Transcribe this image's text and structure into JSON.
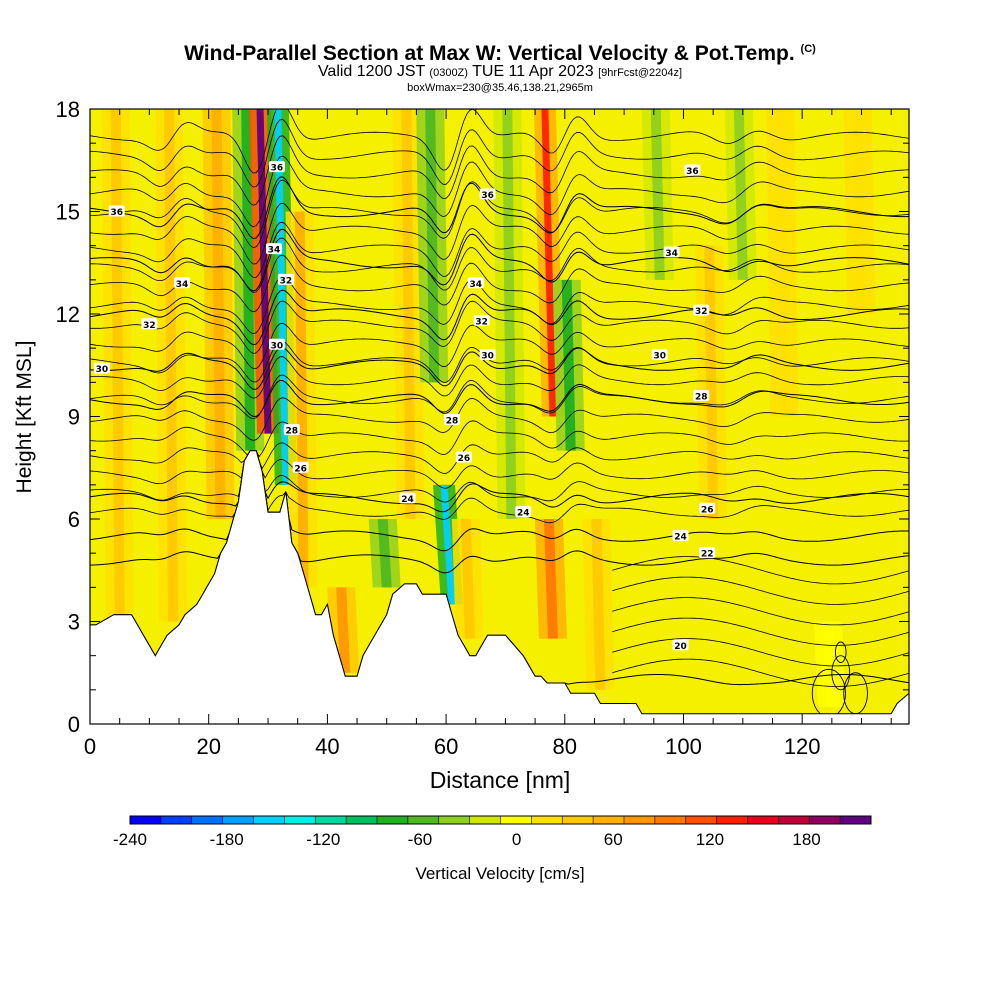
{
  "header": {
    "title_main": "Wind-Parallel Section at Max W: Vertical Velocity & Pot.Temp.",
    "title_tag": "(C)",
    "valid_prefix": "Valid 1200 JST",
    "valid_z": "(0300Z)",
    "valid_date": "TUE 11 Apr 2023",
    "valid_fcst": "[9hrFcst@2204z]",
    "box_info": "boxWmax=230@35.46,138.21,2965m"
  },
  "chart_data": {
    "type": "heatmap",
    "xlabel": "Distance [nm]",
    "ylabel": "Height [Kft MSL]",
    "xlim": [
      0,
      138
    ],
    "ylim": [
      0,
      18
    ],
    "x_ticks": [
      0,
      20,
      40,
      60,
      80,
      100,
      120
    ],
    "y_ticks": [
      0,
      3,
      6,
      9,
      12,
      15,
      18
    ],
    "colorbar": {
      "label": "Vertical Velocity [cm/s]",
      "tick_values": [
        -240,
        -180,
        -120,
        -60,
        0,
        60,
        120,
        180
      ],
      "range": [
        -240,
        220
      ],
      "colors": [
        "#0000ff",
        "#0040ff",
        "#0070ff",
        "#00a0ff",
        "#00d0ff",
        "#00f0e8",
        "#00d8a0",
        "#00c060",
        "#20b020",
        "#50b820",
        "#90d020",
        "#d0e800",
        "#ffff00",
        "#ffe000",
        "#ffc800",
        "#ffb000",
        "#ff9800",
        "#ff7800",
        "#ff5000",
        "#ff2000",
        "#e8001e",
        "#c00038",
        "#900060",
        "#600080"
      ]
    },
    "vertical_velocity_features": [
      {
        "x": 5,
        "top": 18,
        "bottom": 3,
        "w": 40
      },
      {
        "x": 14,
        "top": 18,
        "bottom": 3,
        "w": 30
      },
      {
        "x": 22,
        "top": 18,
        "bottom": 6,
        "w": 60
      },
      {
        "x": 27,
        "top": 18,
        "bottom": 8,
        "w": -70
      },
      {
        "x": 30,
        "top": 18,
        "bottom": 8.5,
        "w": 230
      },
      {
        "x": 33,
        "top": 18,
        "bottom": 7,
        "w": -150
      },
      {
        "x": 36,
        "top": 15,
        "bottom": 4,
        "w": 50
      },
      {
        "x": 43,
        "top": 4,
        "bottom": 1.5,
        "w": 70
      },
      {
        "x": 50,
        "top": 6,
        "bottom": 4,
        "w": -60
      },
      {
        "x": 54,
        "top": 18,
        "bottom": 6,
        "w": 40
      },
      {
        "x": 58,
        "top": 18,
        "bottom": 10,
        "w": -60
      },
      {
        "x": 61,
        "top": 7,
        "bottom": 3.5,
        "w": -150
      },
      {
        "x": 64,
        "top": 6,
        "bottom": 2.5,
        "w": 40
      },
      {
        "x": 71,
        "top": 18,
        "bottom": 6,
        "w": -40
      },
      {
        "x": 78,
        "top": 18,
        "bottom": 9,
        "w": 130
      },
      {
        "x": 78,
        "top": 6,
        "bottom": 2.5,
        "w": 100
      },
      {
        "x": 81,
        "top": 13,
        "bottom": 8,
        "w": -70
      },
      {
        "x": 86,
        "top": 6,
        "bottom": 1,
        "w": 40
      },
      {
        "x": 96,
        "top": 18,
        "bottom": 13,
        "w": -30
      },
      {
        "x": 105,
        "top": 14,
        "bottom": 6,
        "w": 30
      },
      {
        "x": 110,
        "top": 18,
        "bottom": 13,
        "w": -40
      },
      {
        "x": 117,
        "top": 18,
        "bottom": 9,
        "w": 20
      },
      {
        "x": 125,
        "top": 3,
        "bottom": 0.5,
        "w": -10
      },
      {
        "x": 130,
        "top": 18,
        "bottom": 12,
        "w": 20
      }
    ],
    "terrain": [
      [
        0,
        2.9
      ],
      [
        1,
        2.9
      ],
      [
        4,
        3.2
      ],
      [
        7,
        3.2
      ],
      [
        8,
        2.9
      ],
      [
        9,
        2.6
      ],
      [
        10,
        2.3
      ],
      [
        11,
        2.0
      ],
      [
        12,
        2.3
      ],
      [
        13,
        2.6
      ],
      [
        15,
        2.9
      ],
      [
        16,
        3.2
      ],
      [
        18,
        3.5
      ],
      [
        19,
        3.8
      ],
      [
        20,
        4.1
      ],
      [
        21,
        4.4
      ],
      [
        22,
        5.0
      ],
      [
        23,
        5.3
      ],
      [
        24,
        5.9
      ],
      [
        25,
        6.5
      ],
      [
        26,
        7.7
      ],
      [
        27,
        8.0
      ],
      [
        28,
        8.0
      ],
      [
        29,
        7.4
      ],
      [
        30,
        6.2
      ],
      [
        32,
        6.2
      ],
      [
        33,
        6.8
      ],
      [
        34,
        5.3
      ],
      [
        35,
        5.0
      ],
      [
        36,
        4.4
      ],
      [
        37,
        3.8
      ],
      [
        38,
        3.2
      ],
      [
        39,
        3.2
      ],
      [
        40,
        3.5
      ],
      [
        41,
        2.6
      ],
      [
        42,
        2.0
      ],
      [
        43,
        1.4
      ],
      [
        45,
        1.4
      ],
      [
        46,
        2.0
      ],
      [
        47,
        2.3
      ],
      [
        49,
        2.9
      ],
      [
        50,
        3.2
      ],
      [
        51,
        3.8
      ],
      [
        53,
        4.1
      ],
      [
        55,
        4.1
      ],
      [
        56,
        3.8
      ],
      [
        58,
        3.8
      ],
      [
        60,
        3.8
      ],
      [
        61,
        3.2
      ],
      [
        62,
        2.6
      ],
      [
        63,
        2.3
      ],
      [
        64,
        2.0
      ],
      [
        65,
        2.0
      ],
      [
        66,
        2.3
      ],
      [
        67,
        2.6
      ],
      [
        70,
        2.6
      ],
      [
        73,
        2.0
      ],
      [
        75,
        1.4
      ],
      [
        76,
        1.4
      ],
      [
        77,
        1.2
      ],
      [
        80,
        1.2
      ],
      [
        81,
        0.9
      ],
      [
        85,
        0.9
      ],
      [
        86,
        0.6
      ],
      [
        92,
        0.6
      ],
      [
        93,
        0.3
      ],
      [
        135,
        0.3
      ],
      [
        136,
        0.6
      ],
      [
        138,
        0.9
      ]
    ],
    "isentropes": [
      {
        "label": "20",
        "base": 1.3
      },
      {
        "label": "22",
        "base": 4.8
      },
      {
        "label": "24",
        "base": 5.5
      },
      {
        "label": "26",
        "base": 6.6
      },
      {
        "label": "28",
        "base": 9.5
      },
      {
        "label": "30",
        "base": 10.5
      },
      {
        "label": "32",
        "base": 12.0
      },
      {
        "label": "34",
        "base": 13.5
      },
      {
        "label": "36",
        "base": 15.0
      }
    ],
    "contour_labels": [
      {
        "text": "36",
        "x": 4.5,
        "y": 15.0
      },
      {
        "text": "34",
        "x": 15.5,
        "y": 12.9
      },
      {
        "text": "32",
        "x": 10,
        "y": 11.7
      },
      {
        "text": "30",
        "x": 2,
        "y": 10.4
      },
      {
        "text": "36",
        "x": 31.5,
        "y": 16.3
      },
      {
        "text": "34",
        "x": 31,
        "y": 13.9
      },
      {
        "text": "32",
        "x": 33,
        "y": 13.0
      },
      {
        "text": "30",
        "x": 31.5,
        "y": 11.1
      },
      {
        "text": "28",
        "x": 34,
        "y": 8.6
      },
      {
        "text": "26",
        "x": 35.5,
        "y": 7.5
      },
      {
        "text": "24",
        "x": 53.5,
        "y": 6.6
      },
      {
        "text": "36",
        "x": 67,
        "y": 15.5
      },
      {
        "text": "34",
        "x": 65,
        "y": 12.9
      },
      {
        "text": "32",
        "x": 66,
        "y": 11.8
      },
      {
        "text": "30",
        "x": 67,
        "y": 10.8
      },
      {
        "text": "28",
        "x": 61,
        "y": 8.9
      },
      {
        "text": "26",
        "x": 63,
        "y": 7.8
      },
      {
        "text": "24",
        "x": 73,
        "y": 6.2
      },
      {
        "text": "36",
        "x": 101.5,
        "y": 16.2
      },
      {
        "text": "34",
        "x": 98,
        "y": 13.8
      },
      {
        "text": "32",
        "x": 103,
        "y": 12.1
      },
      {
        "text": "30",
        "x": 96,
        "y": 10.8
      },
      {
        "text": "28",
        "x": 103,
        "y": 9.6
      },
      {
        "text": "26",
        "x": 104,
        "y": 6.3
      },
      {
        "text": "24",
        "x": 99.5,
        "y": 5.5
      },
      {
        "text": "22",
        "x": 104,
        "y": 5.0
      },
      {
        "text": "20",
        "x": 99.5,
        "y": 2.3
      }
    ],
    "small_closed_contours": [
      {
        "x": 124.5,
        "y": 0.9,
        "rx": 2.8,
        "ry": 0.7
      },
      {
        "x": 126.5,
        "y": 1.5,
        "rx": 1.5,
        "ry": 0.5
      },
      {
        "x": 126.5,
        "y": 2.1,
        "rx": 0.9,
        "ry": 0.3
      },
      {
        "x": 129,
        "y": 0.9,
        "rx": 2.0,
        "ry": 0.6
      }
    ]
  }
}
